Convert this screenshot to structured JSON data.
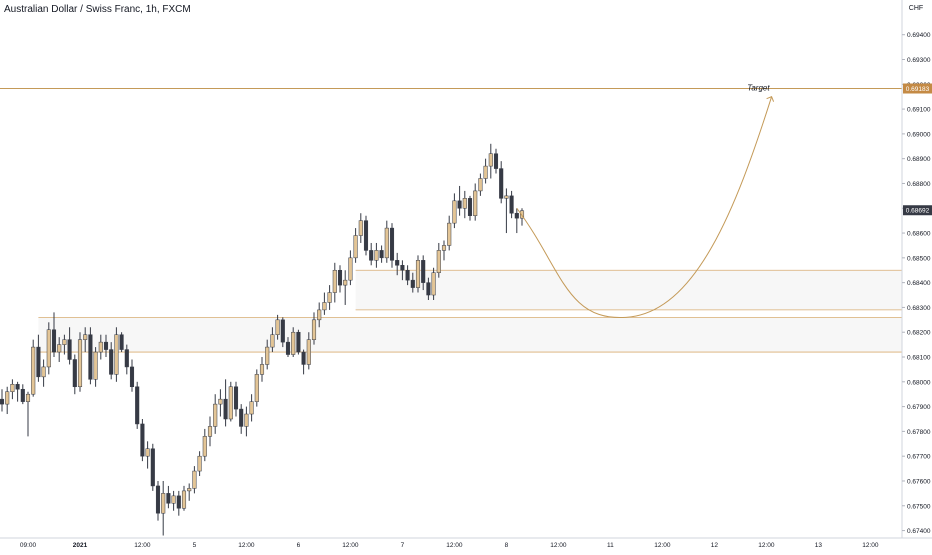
{
  "header": {
    "title": "Australian Dollar / Swiss Franc, 1h, FXCM"
  },
  "price_axis": {
    "currency": "CHF",
    "ticks": [
      "0.69400",
      "0.69300",
      "0.69200",
      "0.69100",
      "0.69000",
      "0.68900",
      "0.68800",
      "0.68700",
      "0.68600",
      "0.68500",
      "0.68400",
      "0.68300",
      "0.68200",
      "0.68100",
      "0.68000",
      "0.67900",
      "0.67800",
      "0.67700",
      "0.67600",
      "0.67500",
      "0.67400"
    ],
    "current_price": "0.68692",
    "target_price": "0.69183"
  },
  "time_axis": {
    "labels": [
      "09:00",
      "2021",
      "12:00",
      "5",
      "12:00",
      "6",
      "12:00",
      "7",
      "12:00",
      "8",
      "12:00",
      "11",
      "12:00",
      "12",
      "12:00",
      "13",
      "12:00"
    ]
  },
  "annotation": {
    "target_label": "Target"
  },
  "colors": {
    "bull": "#e3c596",
    "bear": "#363a45",
    "line": "#c49a58",
    "zone_fill": "#f7f7f7",
    "zone_border": "#d8ad72",
    "target_tag": "#c48a45"
  },
  "chart_data": {
    "type": "candlestick",
    "title": "Australian Dollar / Swiss Franc, 1h, FXCM",
    "ylim": [
      0.6737,
      0.6954
    ],
    "target": 0.69183,
    "last": 0.68692,
    "zones": [
      {
        "low": 0.6829,
        "high": 0.6845
      },
      {
        "low": 0.6812,
        "high": 0.6826
      }
    ],
    "projection": [
      {
        "i": 99,
        "p": 0.687
      },
      {
        "i": 120,
        "p": 0.6826
      },
      {
        "i": 148,
        "p": 0.6915
      }
    ],
    "ohlc": [
      [
        0.6793,
        0.6797,
        0.6788,
        0.6791
      ],
      [
        0.6791,
        0.6798,
        0.6787,
        0.6796
      ],
      [
        0.6796,
        0.6801,
        0.6793,
        0.6799
      ],
      [
        0.6799,
        0.68,
        0.6792,
        0.6797
      ],
      [
        0.6797,
        0.6799,
        0.6791,
        0.6792
      ],
      [
        0.6792,
        0.6796,
        0.6778,
        0.6795
      ],
      [
        0.6795,
        0.6817,
        0.6794,
        0.6814
      ],
      [
        0.6814,
        0.6819,
        0.68,
        0.6802
      ],
      [
        0.6802,
        0.6809,
        0.6798,
        0.6806
      ],
      [
        0.6806,
        0.6824,
        0.6803,
        0.6821
      ],
      [
        0.6821,
        0.6828,
        0.681,
        0.6812
      ],
      [
        0.6812,
        0.6818,
        0.6808,
        0.6815
      ],
      [
        0.6815,
        0.6819,
        0.6811,
        0.6817
      ],
      [
        0.6817,
        0.6822,
        0.6807,
        0.6809
      ],
      [
        0.6809,
        0.6811,
        0.6795,
        0.6798
      ],
      [
        0.6798,
        0.682,
        0.6796,
        0.6817
      ],
      [
        0.6817,
        0.6822,
        0.6812,
        0.6819
      ],
      [
        0.6819,
        0.6822,
        0.6799,
        0.6801
      ],
      [
        0.6801,
        0.6814,
        0.6798,
        0.6812
      ],
      [
        0.6812,
        0.6819,
        0.6809,
        0.6816
      ],
      [
        0.6816,
        0.6819,
        0.681,
        0.6813
      ],
      [
        0.6813,
        0.6816,
        0.6801,
        0.6803
      ],
      [
        0.6803,
        0.6822,
        0.68,
        0.6819
      ],
      [
        0.6819,
        0.682,
        0.6812,
        0.6813
      ],
      [
        0.6813,
        0.6815,
        0.6803,
        0.6806
      ],
      [
        0.6806,
        0.6809,
        0.6796,
        0.6798
      ],
      [
        0.6798,
        0.68,
        0.6781,
        0.6783
      ],
      [
        0.6783,
        0.6785,
        0.6768,
        0.677
      ],
      [
        0.677,
        0.6776,
        0.6765,
        0.6773
      ],
      [
        0.6773,
        0.6775,
        0.6756,
        0.6758
      ],
      [
        0.6758,
        0.676,
        0.6744,
        0.6747
      ],
      [
        0.6747,
        0.676,
        0.6738,
        0.6755
      ],
      [
        0.6755,
        0.6758,
        0.6749,
        0.6751
      ],
      [
        0.6751,
        0.6756,
        0.6748,
        0.6754
      ],
      [
        0.6754,
        0.6756,
        0.6746,
        0.6749
      ],
      [
        0.6749,
        0.6758,
        0.6748,
        0.6756
      ],
      [
        0.6756,
        0.6759,
        0.6752,
        0.6757
      ],
      [
        0.6757,
        0.6766,
        0.6755,
        0.6764
      ],
      [
        0.6764,
        0.6772,
        0.6762,
        0.677
      ],
      [
        0.677,
        0.6781,
        0.6768,
        0.6778
      ],
      [
        0.6778,
        0.6786,
        0.6774,
        0.6782
      ],
      [
        0.6782,
        0.6795,
        0.6779,
        0.6791
      ],
      [
        0.6791,
        0.6797,
        0.6786,
        0.6793
      ],
      [
        0.6793,
        0.6801,
        0.6782,
        0.6785
      ],
      [
        0.6785,
        0.68,
        0.6784,
        0.6798
      ],
      [
        0.6798,
        0.68,
        0.6786,
        0.6789
      ],
      [
        0.6789,
        0.6791,
        0.6779,
        0.6782
      ],
      [
        0.6782,
        0.679,
        0.6778,
        0.6787
      ],
      [
        0.6787,
        0.6795,
        0.6784,
        0.6792
      ],
      [
        0.6792,
        0.6805,
        0.679,
        0.6803
      ],
      [
        0.6803,
        0.681,
        0.68,
        0.6807
      ],
      [
        0.6807,
        0.6817,
        0.6805,
        0.6814
      ],
      [
        0.6814,
        0.6822,
        0.6812,
        0.6819
      ],
      [
        0.6819,
        0.6827,
        0.6817,
        0.6825
      ],
      [
        0.6825,
        0.6826,
        0.6814,
        0.6816
      ],
      [
        0.6816,
        0.6818,
        0.681,
        0.6811
      ],
      [
        0.6811,
        0.6822,
        0.681,
        0.682
      ],
      [
        0.682,
        0.6821,
        0.6811,
        0.6812
      ],
      [
        0.6812,
        0.6813,
        0.6803,
        0.6807
      ],
      [
        0.6807,
        0.682,
        0.6805,
        0.6817
      ],
      [
        0.6817,
        0.6828,
        0.6815,
        0.6825
      ],
      [
        0.6825,
        0.6832,
        0.6822,
        0.6829
      ],
      [
        0.6829,
        0.6836,
        0.6827,
        0.6832
      ],
      [
        0.6832,
        0.6839,
        0.6829,
        0.6836
      ],
      [
        0.6836,
        0.6848,
        0.6832,
        0.6845
      ],
      [
        0.6845,
        0.6847,
        0.6836,
        0.6839
      ],
      [
        0.6839,
        0.6845,
        0.6831,
        0.6841
      ],
      [
        0.6841,
        0.6853,
        0.6839,
        0.685
      ],
      [
        0.685,
        0.6862,
        0.6848,
        0.6859
      ],
      [
        0.6859,
        0.6868,
        0.6856,
        0.6865
      ],
      [
        0.6865,
        0.6867,
        0.6851,
        0.6853
      ],
      [
        0.6853,
        0.6856,
        0.6847,
        0.6849
      ],
      [
        0.6849,
        0.6856,
        0.6846,
        0.6853
      ],
      [
        0.6853,
        0.6855,
        0.6848,
        0.685
      ],
      [
        0.685,
        0.6865,
        0.6848,
        0.6862
      ],
      [
        0.6862,
        0.6864,
        0.6846,
        0.6849
      ],
      [
        0.6849,
        0.6852,
        0.6843,
        0.6847
      ],
      [
        0.6847,
        0.6849,
        0.6841,
        0.6845
      ],
      [
        0.6845,
        0.6847,
        0.6839,
        0.6841
      ],
      [
        0.6841,
        0.6844,
        0.6836,
        0.6838
      ],
      [
        0.6838,
        0.6851,
        0.6836,
        0.6849
      ],
      [
        0.6849,
        0.6851,
        0.6837,
        0.684
      ],
      [
        0.684,
        0.6842,
        0.6833,
        0.6835
      ],
      [
        0.6835,
        0.6846,
        0.6833,
        0.6844
      ],
      [
        0.6844,
        0.6856,
        0.6842,
        0.6853
      ],
      [
        0.6853,
        0.6857,
        0.6849,
        0.6855
      ],
      [
        0.6855,
        0.6867,
        0.6853,
        0.6864
      ],
      [
        0.6864,
        0.6876,
        0.6862,
        0.6873
      ],
      [
        0.6873,
        0.6879,
        0.6867,
        0.687
      ],
      [
        0.687,
        0.6877,
        0.6866,
        0.6874
      ],
      [
        0.6874,
        0.6875,
        0.6865,
        0.6867
      ],
      [
        0.6867,
        0.688,
        0.6865,
        0.6877
      ],
      [
        0.6877,
        0.6884,
        0.6875,
        0.6882
      ],
      [
        0.6882,
        0.689,
        0.688,
        0.6887
      ],
      [
        0.6887,
        0.6896,
        0.6882,
        0.6892
      ],
      [
        0.6892,
        0.6894,
        0.6884,
        0.6886
      ],
      [
        0.6886,
        0.6889,
        0.6872,
        0.6874
      ],
      [
        0.6874,
        0.6878,
        0.686,
        0.6875
      ],
      [
        0.6875,
        0.6877,
        0.6866,
        0.6868
      ],
      [
        0.6868,
        0.687,
        0.686,
        0.6866
      ],
      [
        0.6866,
        0.687,
        0.6863,
        0.6869
      ]
    ]
  }
}
